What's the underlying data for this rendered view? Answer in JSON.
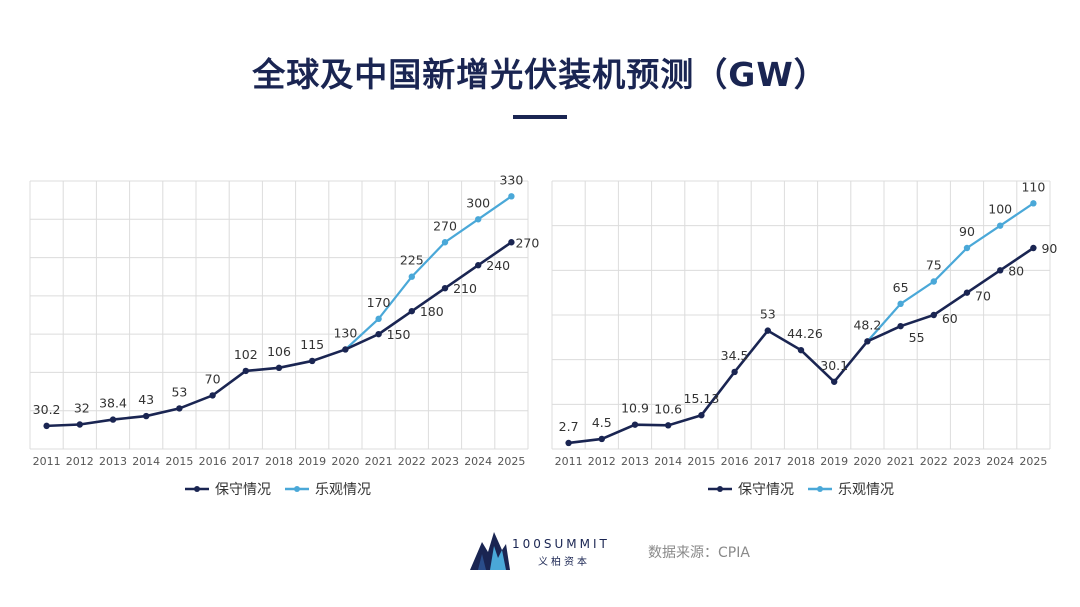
{
  "title": "全球及中国新增光伏装机预测（GW）",
  "source": "数据来源：CPIA",
  "brand": {
    "name": "100SUMMIT",
    "sub": "义柏资本"
  },
  "colors": {
    "conservative": "#1a2552",
    "optimistic": "#4aa8d8",
    "title": "#1a2552"
  },
  "chart_data": [
    {
      "type": "line",
      "title": "",
      "categories": [
        "2011",
        "2012",
        "2013",
        "2014",
        "2015",
        "2016",
        "2017",
        "2018",
        "2019",
        "2020",
        "2021",
        "2022",
        "2023",
        "2024",
        "2025"
      ],
      "ylim": [
        0,
        350
      ],
      "grid": true,
      "legend": "bottom-center",
      "series": [
        {
          "name": "保守情况",
          "values": [
            30.2,
            32,
            38.4,
            43,
            53,
            70,
            102,
            106,
            115,
            130,
            150,
            180,
            210,
            240,
            270
          ],
          "labels": [
            "30.2",
            "32",
            "38.4",
            "43",
            "53",
            "70",
            "102",
            "106",
            "115",
            "130",
            "150",
            "180",
            "210",
            "240",
            "270"
          ]
        },
        {
          "name": "乐观情况",
          "values": [
            null,
            null,
            null,
            null,
            null,
            null,
            null,
            null,
            null,
            130,
            170,
            225,
            270,
            300,
            330
          ],
          "labels": [
            "",
            "",
            "",
            "",
            "",
            "",
            "",
            "",
            "",
            "",
            "170",
            "225",
            "270",
            "300",
            "330"
          ]
        }
      ]
    },
    {
      "type": "line",
      "title": "",
      "categories": [
        "2011",
        "2012",
        "2013",
        "2014",
        "2015",
        "2016",
        "2017",
        "2018",
        "2019",
        "2020",
        "2021",
        "2022",
        "2023",
        "2024",
        "2025"
      ],
      "ylim": [
        0,
        120
      ],
      "grid": true,
      "legend": "bottom-center",
      "series": [
        {
          "name": "保守情况",
          "values": [
            2.7,
            4.5,
            10.9,
            10.6,
            15.13,
            34.5,
            53,
            44.26,
            30.1,
            48.2,
            55,
            60,
            70,
            80,
            90
          ],
          "labels": [
            "2.7",
            "4.5",
            "10.9",
            "10.6",
            "15.13",
            "34.5",
            "53",
            "44.26",
            "30.1",
            "48.2",
            "55",
            "60",
            "70",
            "80",
            "90"
          ]
        },
        {
          "name": "乐观情况",
          "values": [
            null,
            null,
            null,
            null,
            null,
            null,
            null,
            null,
            null,
            48.2,
            65,
            75,
            90,
            100,
            110
          ],
          "labels": [
            "",
            "",
            "",
            "",
            "",
            "",
            "",
            "",
            "",
            "",
            "65",
            "75",
            "90",
            "100",
            "110"
          ]
        }
      ]
    }
  ]
}
